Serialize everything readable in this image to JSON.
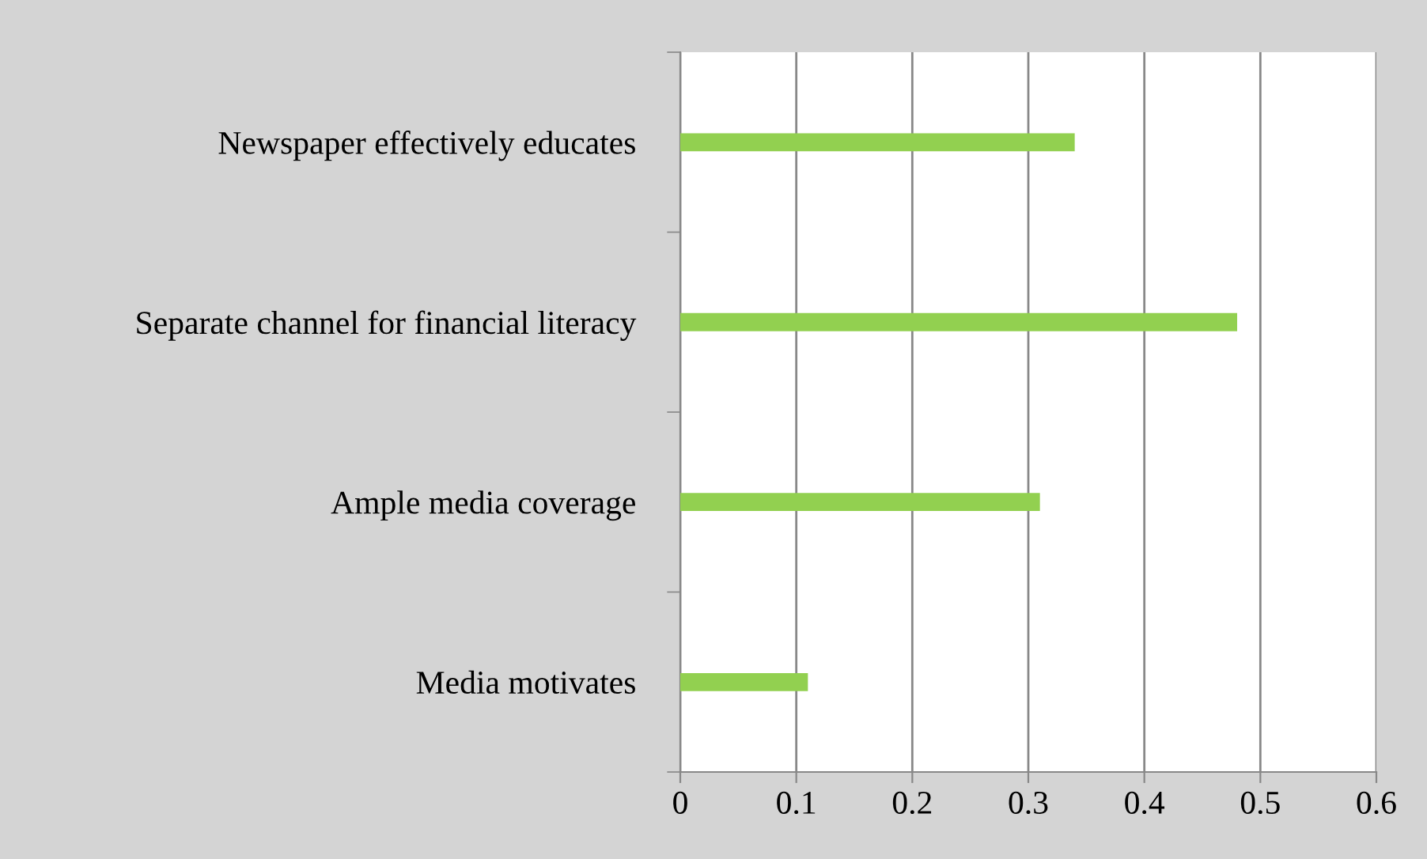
{
  "chart_data": {
    "type": "bar",
    "orientation": "horizontal",
    "categories": [
      "Newspaper effectively educates",
      "Separate channel for financial literacy",
      "Ample media coverage",
      "Media motivates"
    ],
    "values": [
      0.34,
      0.48,
      0.31,
      0.11
    ],
    "color": "#92d050",
    "xlim": [
      0,
      0.6
    ],
    "xticks": [
      0,
      0.1,
      0.2,
      0.3,
      0.4,
      0.5,
      0.6
    ],
    "grid": "x",
    "legend": false
  }
}
